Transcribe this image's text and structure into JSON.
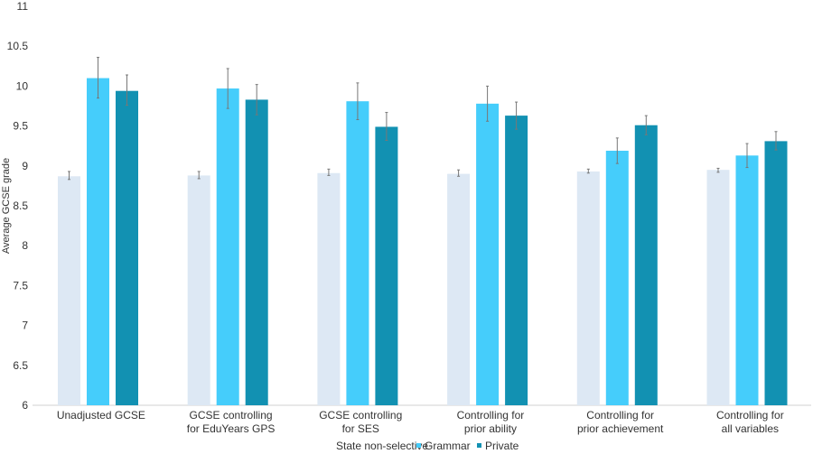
{
  "chart_data": {
    "type": "bar",
    "ylabel": "Average GCSE grade",
    "ylim": [
      6,
      11
    ],
    "yticks": [
      "6",
      "6.5",
      "7",
      "7.5",
      "8",
      "8.5",
      "9",
      "9.5",
      "10",
      "10.5",
      "11"
    ],
    "grid": false,
    "legend_position": "bottom",
    "categories": [
      [
        "Unadjusted GCSE"
      ],
      [
        "GCSE controlling",
        "for EduYears GPS"
      ],
      [
        "GCSE controlling",
        "for SES"
      ],
      [
        "Controlling for",
        "prior ability"
      ],
      [
        "Controlling for",
        "prior achievement"
      ],
      [
        "Controlling for",
        "all variables"
      ]
    ],
    "series": [
      {
        "name": "State non-selective",
        "color": "#dde8f4",
        "values": [
          8.87,
          8.88,
          8.91,
          8.9,
          8.93,
          8.95
        ],
        "err_low": [
          8.83,
          8.84,
          8.88,
          8.87,
          8.91,
          8.92
        ],
        "err_high": [
          8.93,
          8.93,
          8.96,
          8.95,
          8.96,
          8.97
        ]
      },
      {
        "name": "Grammar",
        "color": "#45cdfb",
        "values": [
          10.1,
          9.97,
          9.81,
          9.78,
          9.19,
          9.13
        ],
        "err_low": [
          9.85,
          9.72,
          9.58,
          9.56,
          9.03,
          8.98
        ],
        "err_high": [
          10.36,
          10.22,
          10.04,
          10.0,
          9.35,
          9.28
        ]
      },
      {
        "name": "Private",
        "color": "#1291b2",
        "values": [
          9.94,
          9.83,
          9.49,
          9.63,
          9.51,
          9.31
        ],
        "err_low": [
          9.76,
          9.64,
          9.32,
          9.46,
          9.39,
          9.2
        ],
        "err_high": [
          10.14,
          10.02,
          9.67,
          9.8,
          9.63,
          9.43
        ]
      }
    ]
  }
}
